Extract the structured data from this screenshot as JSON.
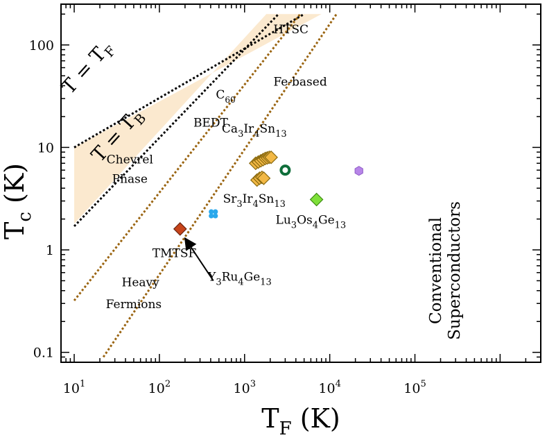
{
  "chart_data": {
    "type": "scatter",
    "title": "",
    "x_scale": "log",
    "y_scale": "log",
    "xlim": [
      7,
      3000000
    ],
    "ylim": [
      0.08,
      250
    ],
    "x_ticks": [
      10,
      100,
      1000,
      10000,
      100000
    ],
    "x_tick_labels": [
      "10",
      "10",
      "10",
      "10",
      "10"
    ],
    "x_tick_exponents": [
      "1",
      "2",
      "3",
      "4",
      "5"
    ],
    "y_ticks": [
      0.1,
      1,
      10,
      100
    ],
    "y_tick_labels": [
      "0.1",
      "1",
      "10",
      "100"
    ],
    "xlabel": {
      "main": "T",
      "sub": "F",
      "unit": "(K)"
    },
    "ylabel": {
      "main": "T",
      "sub": "c",
      "unit": "(K)"
    },
    "grid": false,
    "legend": "none",
    "reference_lines": [
      {
        "id": "t-tf",
        "points": [
          [
            10,
            10
          ],
          [
            5000,
            200
          ]
        ],
        "color": "#000000"
      },
      {
        "id": "t-tb",
        "points": [
          [
            10,
            1.7
          ],
          [
            2500,
            200
          ]
        ],
        "color": "#000000"
      },
      {
        "id": "line-left",
        "points": [
          [
            10,
            0.32
          ],
          [
            4500,
            200
          ]
        ],
        "color": "#9a6410"
      },
      {
        "id": "line-right",
        "points": [
          [
            22,
            0.09
          ],
          [
            12000,
            200
          ]
        ],
        "color": "#9a6410"
      }
    ],
    "shaded_band": {
      "color": "#fbe9cf",
      "points": [
        [
          10,
          1.8
        ],
        [
          10,
          10
        ],
        [
          8000,
          200
        ],
        [
          1800,
          200
        ]
      ]
    },
    "band_labels": [
      {
        "id": "t-eq-tf",
        "main": "T = T",
        "sub": "F",
        "x": 16,
        "y": 55,
        "angle": -48
      },
      {
        "id": "t-eq-tb",
        "main": "T = T",
        "sub": "B",
        "x": 36,
        "y": 12,
        "angle": -48
      }
    ],
    "region_labels": [
      {
        "id": "htsc",
        "text": "HTSC",
        "x": 3500,
        "y": 130
      },
      {
        "id": "fe-based",
        "text": "Fe-based",
        "x": 4500,
        "y": 40
      },
      {
        "id": "c60",
        "text": "C",
        "sub": "60",
        "x": 600,
        "y": 30
      },
      {
        "id": "bedt",
        "text": "BEDT",
        "x": 400,
        "y": 16
      },
      {
        "id": "chevrel",
        "text": "Chevrel",
        "x": 45,
        "y": 7
      },
      {
        "id": "phase",
        "text": "Phase",
        "x": 45,
        "y": 4.5
      },
      {
        "id": "tmtsf",
        "text": "TMTSF",
        "x": 150,
        "y": 0.85
      },
      {
        "id": "heavy",
        "text": "Heavy",
        "x": 60,
        "y": 0.44
      },
      {
        "id": "fermions",
        "text": "Fermions",
        "x": 50,
        "y": 0.27
      }
    ],
    "compound_labels": [
      {
        "id": "ca3ir4sn13",
        "parts": [
          [
            "Ca",
            ""
          ],
          [
            "3",
            "sub"
          ],
          [
            "Ir",
            ""
          ],
          [
            "4",
            "sub"
          ],
          [
            "Sn",
            ""
          ],
          [
            "13",
            "sub"
          ]
        ],
        "x": 1300,
        "y": 14
      },
      {
        "id": "sr3ir4sn13",
        "parts": [
          [
            "Sr",
            ""
          ],
          [
            "3",
            "sub"
          ],
          [
            "Ir",
            ""
          ],
          [
            "4",
            "sub"
          ],
          [
            "Sn",
            ""
          ],
          [
            "13",
            "sub"
          ]
        ],
        "x": 1300,
        "y": 2.9
      },
      {
        "id": "lu3os4ge13",
        "parts": [
          [
            "Lu",
            ""
          ],
          [
            "3",
            "sub"
          ],
          [
            "Os",
            ""
          ],
          [
            "4",
            "sub"
          ],
          [
            "Ge",
            ""
          ],
          [
            "13",
            "sub"
          ]
        ],
        "x": 6000,
        "y": 1.8
      },
      {
        "id": "y3ru4ge13",
        "parts": [
          [
            "Y",
            ""
          ],
          [
            "3",
            "sub"
          ],
          [
            "Ru",
            ""
          ],
          [
            "4",
            "sub"
          ],
          [
            "Ge",
            ""
          ],
          [
            "13",
            "sub"
          ]
        ],
        "x": 880,
        "y": 0.5
      }
    ],
    "conventional_label": [
      "Conventional",
      "Superconductors"
    ],
    "arrow": {
      "from": [
        430,
        0.5
      ],
      "to": [
        200,
        1.3
      ]
    },
    "series": [
      {
        "name": "Ca3Ir4Sn13",
        "marker": "diamond",
        "color": "#f2b845",
        "stroke": "#8a6a10",
        "points": [
          [
            1350,
            7.0
          ],
          [
            1450,
            7.2
          ],
          [
            1550,
            7.4
          ],
          [
            1650,
            7.6
          ],
          [
            1750,
            7.8
          ],
          [
            1850,
            7.9
          ],
          [
            1950,
            8.0
          ],
          [
            2050,
            8.0
          ]
        ]
      },
      {
        "name": "Sr3Ir4Sn13",
        "marker": "diamond",
        "color": "#f2b845",
        "stroke": "#8a6a10",
        "points": [
          [
            1400,
            4.8
          ],
          [
            1500,
            5.0
          ],
          [
            1600,
            5.1
          ],
          [
            1680,
            5.0
          ]
        ]
      },
      {
        "name": "Y3Ru4Ge13",
        "marker": "diamond",
        "color": "#c7441a",
        "stroke": "#6b2410",
        "points": [
          [
            175,
            1.6
          ]
        ]
      },
      {
        "name": "Lu3Os4Ge13",
        "marker": "diamond",
        "color": "#7fe03a",
        "stroke": "#3c8a10",
        "points": [
          [
            7000,
            3.1
          ]
        ]
      },
      {
        "name": "",
        "marker": "clover",
        "color": "#29a8ec",
        "stroke": "#29a8ec",
        "points": [
          [
            430,
            2.25
          ]
        ]
      },
      {
        "name": "",
        "marker": "ring",
        "color": "#0f6e3a",
        "stroke": "#0f6e3a",
        "points": [
          [
            3000,
            6.0
          ]
        ]
      },
      {
        "name": "",
        "marker": "hexagon",
        "color": "#b785e8",
        "stroke": "#8f5cc6",
        "points": [
          [
            22000,
            5.9
          ]
        ]
      }
    ]
  }
}
